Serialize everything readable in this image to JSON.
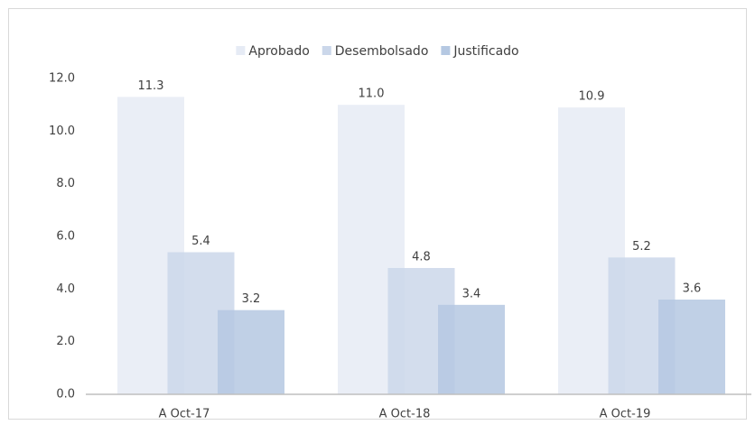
{
  "chart_data": {
    "type": "bar",
    "categories": [
      "A Oct-17",
      "A Oct-18",
      "A Oct-19"
    ],
    "series": [
      {
        "name": "Aprobado",
        "color": "#e6ebf5",
        "values": [
          11.3,
          11.0,
          10.9
        ],
        "value_labels": [
          "11.3",
          "11.0",
          "10.9"
        ]
      },
      {
        "name": "Desembolsado",
        "color": "#cbd7ea",
        "values": [
          5.4,
          4.8,
          5.2
        ],
        "value_labels": [
          "5.4",
          "4.8",
          "5.2"
        ]
      },
      {
        "name": "Justificado",
        "color": "#b5c8e2",
        "values": [
          3.2,
          3.4,
          3.6
        ],
        "value_labels": [
          "3.2",
          "3.4",
          "3.6"
        ]
      }
    ],
    "ylim": [
      0,
      12
    ],
    "yticks": [
      {
        "value": 0,
        "label": "0.0"
      },
      {
        "value": 2,
        "label": "2.0"
      },
      {
        "value": 4,
        "label": "4.0"
      },
      {
        "value": 6,
        "label": "6.0"
      },
      {
        "value": 8,
        "label": "8.0"
      },
      {
        "value": 10,
        "label": "10.0"
      },
      {
        "value": 12,
        "label": "12.0"
      }
    ],
    "legend": "top"
  }
}
